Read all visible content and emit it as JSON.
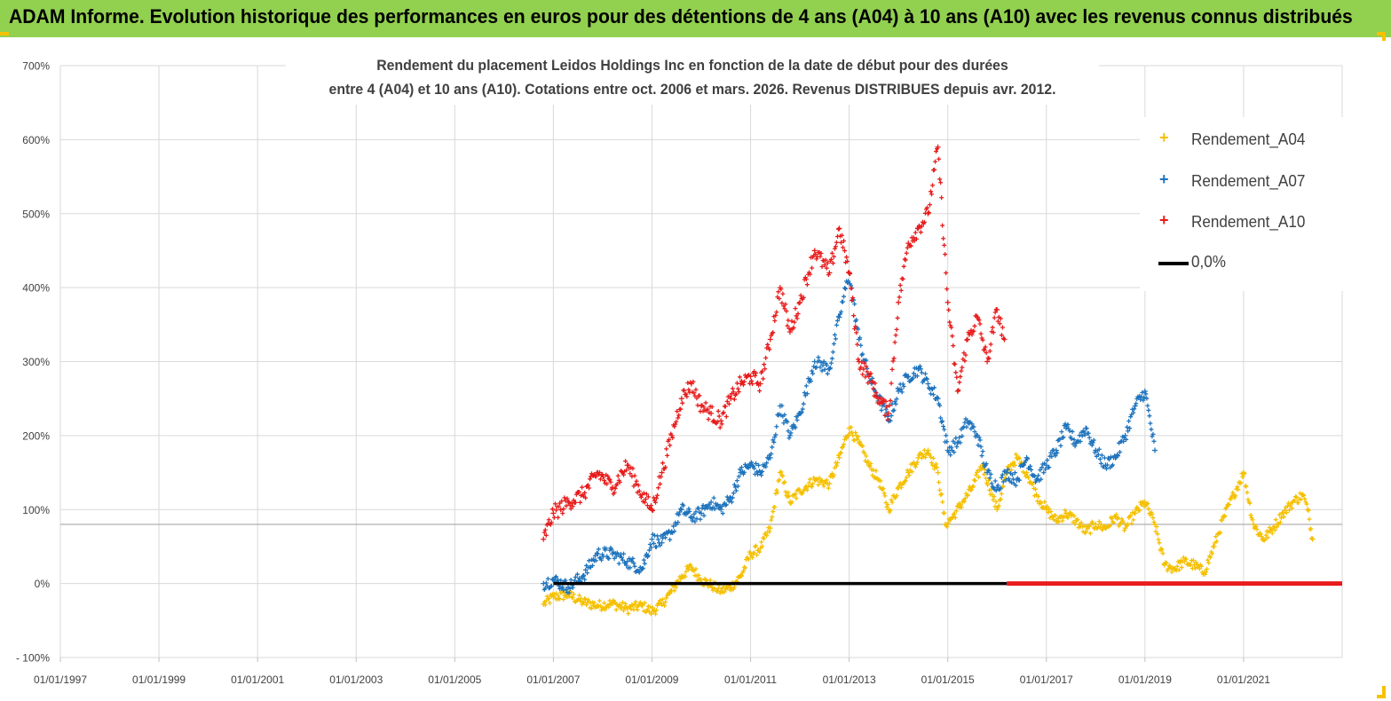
{
  "header": {
    "title": "ADAM Informe. Evolution historique des performances en euros pour des détentions de 4 ans (A04) à 10 ans (A10) avec les revenus connus distribués"
  },
  "colors": {
    "header_bg": "#92d050",
    "corner": "#f6c100",
    "a04": "#f5c000",
    "a07": "#1f74bd",
    "a10": "#e81c1c",
    "zero": "#000000",
    "grid": "#d9d9d9"
  },
  "chart_data": {
    "type": "scatter",
    "title_lines": [
      "Rendement du placement Leidos Holdings Inc en fonction de la date de début pour des durées",
      "entre 4 (A04) et 10 ans (A10). Cotations entre oct. 2006 et mars. 2026. Revenus DISTRIBUES depuis avr. 2012."
    ],
    "x_ticks": [
      "01/01/1997",
      "01/01/1999",
      "01/01/2001",
      "01/01/2003",
      "01/01/2005",
      "01/01/2007",
      "01/01/2009",
      "01/01/2011",
      "01/01/2013",
      "01/01/2015",
      "01/01/2017",
      "01/01/2019",
      "01/01/2021"
    ],
    "xlim": [
      1997.0,
      2023.0
    ],
    "y_ticks": [
      "700%",
      "600%",
      "500%",
      "400%",
      "300%",
      "200%",
      "100%",
      "0%",
      "- 100%"
    ],
    "ylim": [
      -100,
      700
    ],
    "reference_line_y": 80,
    "series": [
      {
        "name": "Rendement_A04",
        "color": "#f5c000",
        "points": [
          [
            2006.8,
            -28
          ],
          [
            2007.0,
            -18
          ],
          [
            2007.3,
            -15
          ],
          [
            2007.6,
            -25
          ],
          [
            2007.9,
            -30
          ],
          [
            2008.2,
            -27
          ],
          [
            2008.5,
            -34
          ],
          [
            2008.8,
            -30
          ],
          [
            2009.0,
            -38
          ],
          [
            2009.2,
            -28
          ],
          [
            2009.4,
            -10
          ],
          [
            2009.6,
            10
          ],
          [
            2009.8,
            22
          ],
          [
            2010.0,
            5
          ],
          [
            2010.2,
            -2
          ],
          [
            2010.4,
            -10
          ],
          [
            2010.6,
            -5
          ],
          [
            2010.8,
            10
          ],
          [
            2011.0,
            40
          ],
          [
            2011.2,
            48
          ],
          [
            2011.4,
            75
          ],
          [
            2011.6,
            150
          ],
          [
            2011.8,
            110
          ],
          [
            2012.0,
            125
          ],
          [
            2012.3,
            140
          ],
          [
            2012.6,
            135
          ],
          [
            2012.8,
            170
          ],
          [
            2013.0,
            210
          ],
          [
            2013.2,
            190
          ],
          [
            2013.4,
            160
          ],
          [
            2013.6,
            140
          ],
          [
            2013.8,
            100
          ],
          [
            2014.0,
            130
          ],
          [
            2014.2,
            150
          ],
          [
            2014.4,
            170
          ],
          [
            2014.6,
            180
          ],
          [
            2014.8,
            150
          ],
          [
            2014.95,
            80
          ],
          [
            2015.1,
            90
          ],
          [
            2015.3,
            110
          ],
          [
            2015.5,
            130
          ],
          [
            2015.7,
            160
          ],
          [
            2015.9,
            120
          ],
          [
            2016.0,
            100
          ],
          [
            2016.2,
            150
          ],
          [
            2016.4,
            170
          ],
          [
            2016.6,
            150
          ],
          [
            2016.8,
            120
          ],
          [
            2017.0,
            100
          ],
          [
            2017.2,
            85
          ],
          [
            2017.4,
            95
          ],
          [
            2017.6,
            85
          ],
          [
            2017.8,
            70
          ],
          [
            2018.0,
            80
          ],
          [
            2018.2,
            75
          ],
          [
            2018.4,
            90
          ],
          [
            2018.6,
            75
          ],
          [
            2018.8,
            95
          ],
          [
            2019.0,
            110
          ],
          [
            2019.2,
            80
          ],
          [
            2019.4,
            25
          ],
          [
            2019.6,
            20
          ],
          [
            2019.8,
            30
          ],
          [
            2020.0,
            25
          ],
          [
            2020.2,
            15
          ],
          [
            2020.4,
            50
          ],
          [
            2020.6,
            90
          ],
          [
            2020.8,
            120
          ],
          [
            2021.0,
            150
          ],
          [
            2021.2,
            80
          ],
          [
            2021.4,
            60
          ],
          [
            2021.6,
            75
          ],
          [
            2021.8,
            95
          ],
          [
            2022.0,
            110
          ],
          [
            2022.2,
            120
          ],
          [
            2022.3,
            100
          ],
          [
            2022.4,
            60
          ]
        ]
      },
      {
        "name": "Rendement_A07",
        "color": "#1f74bd",
        "points": [
          [
            2006.8,
            0
          ],
          [
            2007.0,
            5
          ],
          [
            2007.3,
            -5
          ],
          [
            2007.6,
            10
          ],
          [
            2007.9,
            40
          ],
          [
            2008.2,
            40
          ],
          [
            2008.5,
            30
          ],
          [
            2008.8,
            20
          ],
          [
            2009.0,
            60
          ],
          [
            2009.2,
            55
          ],
          [
            2009.4,
            70
          ],
          [
            2009.6,
            100
          ],
          [
            2009.8,
            90
          ],
          [
            2010.0,
            95
          ],
          [
            2010.2,
            110
          ],
          [
            2010.4,
            100
          ],
          [
            2010.6,
            115
          ],
          [
            2010.8,
            150
          ],
          [
            2011.0,
            160
          ],
          [
            2011.2,
            150
          ],
          [
            2011.4,
            170
          ],
          [
            2011.6,
            240
          ],
          [
            2011.8,
            200
          ],
          [
            2012.0,
            230
          ],
          [
            2012.3,
            300
          ],
          [
            2012.6,
            290
          ],
          [
            2012.8,
            360
          ],
          [
            2013.0,
            420
          ],
          [
            2013.2,
            330
          ],
          [
            2013.4,
            280
          ],
          [
            2013.6,
            250
          ],
          [
            2013.8,
            220
          ],
          [
            2014.0,
            260
          ],
          [
            2014.2,
            280
          ],
          [
            2014.4,
            290
          ],
          [
            2014.6,
            270
          ],
          [
            2014.8,
            250
          ],
          [
            2015.0,
            180
          ],
          [
            2015.2,
            190
          ],
          [
            2015.4,
            220
          ],
          [
            2015.6,
            200
          ],
          [
            2015.8,
            150
          ],
          [
            2016.0,
            130
          ],
          [
            2016.2,
            150
          ],
          [
            2016.4,
            140
          ],
          [
            2016.6,
            170
          ],
          [
            2016.8,
            140
          ],
          [
            2017.0,
            160
          ],
          [
            2017.2,
            180
          ],
          [
            2017.4,
            210
          ],
          [
            2017.6,
            190
          ],
          [
            2017.8,
            210
          ],
          [
            2018.0,
            180
          ],
          [
            2018.2,
            160
          ],
          [
            2018.4,
            170
          ],
          [
            2018.6,
            200
          ],
          [
            2018.8,
            240
          ],
          [
            2019.0,
            260
          ],
          [
            2019.2,
            180
          ]
        ]
      },
      {
        "name": "Rendement_A10",
        "color": "#e81c1c",
        "points": [
          [
            2006.8,
            60
          ],
          [
            2007.0,
            95
          ],
          [
            2007.3,
            110
          ],
          [
            2007.6,
            120
          ],
          [
            2007.9,
            150
          ],
          [
            2008.2,
            130
          ],
          [
            2008.5,
            160
          ],
          [
            2008.8,
            120
          ],
          [
            2009.0,
            100
          ],
          [
            2009.2,
            150
          ],
          [
            2009.4,
            200
          ],
          [
            2009.6,
            250
          ],
          [
            2009.8,
            270
          ],
          [
            2010.0,
            240
          ],
          [
            2010.2,
            230
          ],
          [
            2010.4,
            220
          ],
          [
            2010.6,
            250
          ],
          [
            2010.8,
            270
          ],
          [
            2011.0,
            280
          ],
          [
            2011.2,
            270
          ],
          [
            2011.4,
            330
          ],
          [
            2011.6,
            400
          ],
          [
            2011.8,
            340
          ],
          [
            2012.0,
            380
          ],
          [
            2012.3,
            450
          ],
          [
            2012.6,
            420
          ],
          [
            2012.8,
            480
          ],
          [
            2013.0,
            420
          ],
          [
            2013.2,
            300
          ],
          [
            2013.4,
            280
          ],
          [
            2013.6,
            250
          ],
          [
            2013.8,
            230
          ],
          [
            2014.0,
            380
          ],
          [
            2014.2,
            460
          ],
          [
            2014.4,
            480
          ],
          [
            2014.6,
            500
          ],
          [
            2014.8,
            590
          ],
          [
            2015.0,
            380
          ],
          [
            2015.2,
            260
          ],
          [
            2015.4,
            330
          ],
          [
            2015.6,
            360
          ],
          [
            2015.8,
            300
          ],
          [
            2016.0,
            370
          ],
          [
            2016.15,
            330
          ]
        ]
      }
    ],
    "zero_series": {
      "name": "0,0%",
      "color": "#000000",
      "x_range": [
        2007.0,
        2016.2
      ]
    },
    "zero_marker_range": {
      "color": "#e81c1c",
      "x_range": [
        2016.2,
        2023.0
      ]
    }
  },
  "legend": [
    {
      "label": "Rendement_A04",
      "color": "#f5c000",
      "kind": "marker"
    },
    {
      "label": "Rendement_A07",
      "color": "#1f74bd",
      "kind": "marker"
    },
    {
      "label": "Rendement_A10",
      "color": "#e81c1c",
      "kind": "marker"
    },
    {
      "label": "0,0%",
      "color": "#000000",
      "kind": "line"
    }
  ]
}
